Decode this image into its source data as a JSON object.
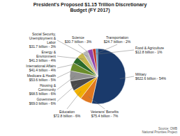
{
  "chart_data": {
    "type": "pie",
    "title": "President's Proposed $1.15 Trillion Discretionary\nBudget (FY 2017)",
    "categories": [
      "Military",
      "Veterans' Benefits",
      "Education",
      "Government",
      "Housing &\nCommunity",
      "Medicare & Health",
      "International Affairs",
      "Energy &\nEnvironment",
      "Social Security,\nUnemployment &\nLabor",
      "Science",
      "Transportation",
      "Food & Agriculture"
    ],
    "values": [
      54,
      7,
      6,
      6,
      6,
      5,
      4,
      4,
      3,
      3,
      2,
      1
    ],
    "value_labels": [
      "$622.6 billion - 54%",
      "$75.4 billion - 7%",
      "$72.8 billion - 6%",
      "$69.0 billion - 6%",
      "$68.5 billion - 6%",
      "$53.6 billion - 5%",
      "$41.4 billion - 4%",
      "$41.3 billion - 4%",
      "$31.7 billion - 3%",
      "$30.7 billion - 3%",
      "$24.7 billion - 2%",
      "$12.8 billion - 1%"
    ],
    "colors": [
      "#1a3a6b",
      "#e07820",
      "#f0b000",
      "#4a4a4a",
      "#909090",
      "#6a8c2a",
      "#2a6a2a",
      "#c8b850",
      "#b8b8b8",
      "#8e44ad",
      "#c0392b",
      "#2980b9"
    ],
    "data_labels": true,
    "annotations": [
      "Source: OMB\nNational Priorities Project"
    ]
  }
}
